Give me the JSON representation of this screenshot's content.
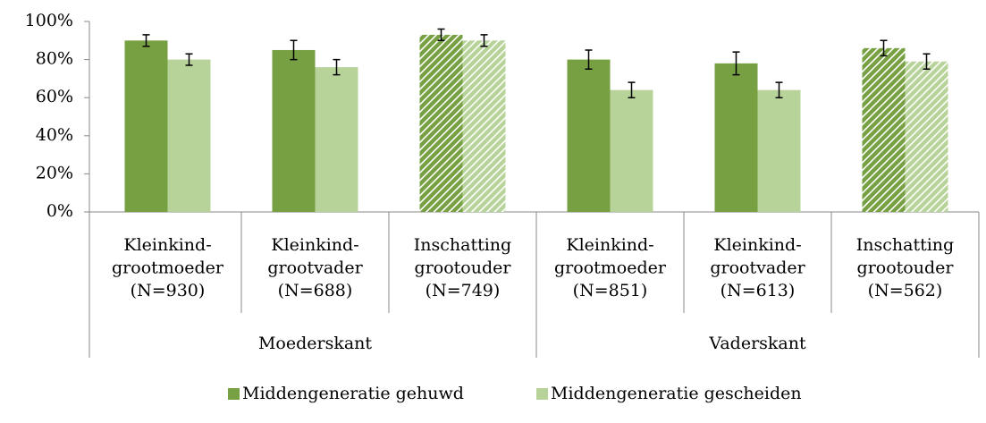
{
  "chart_data": {
    "type": "bar",
    "categories": [
      [
        "Kleinkind-",
        "grootmoeder",
        "(N=930)"
      ],
      [
        "Kleinkind-",
        "grootvader",
        "(N=688)"
      ],
      [
        "Inschatting",
        "grootouder",
        "(N=749)"
      ],
      [
        "Kleinkind-",
        "grootmoeder",
        "(N=851)"
      ],
      [
        "Kleinkind-",
        "grootvader",
        "(N=613)"
      ],
      [
        "Inschatting",
        "grootouder",
        "(N=562)"
      ]
    ],
    "groups": [
      {
        "label": "Moederskant",
        "span": 3
      },
      {
        "label": "Vaderskant",
        "span": 3
      }
    ],
    "hatched": [
      false,
      false,
      true,
      false,
      false,
      true
    ],
    "series": [
      {
        "name": "Middengeneratie gehuwd",
        "color": "#77a043",
        "values": [
          90,
          85,
          93,
          80,
          78,
          86
        ],
        "errors": [
          3,
          5,
          3,
          5,
          6,
          4
        ]
      },
      {
        "name": "Middengeneratie gescheiden",
        "color": "#b7d39a",
        "values": [
          80,
          76,
          90,
          64,
          64,
          79
        ],
        "errors": [
          3,
          4,
          3,
          4,
          4,
          4
        ]
      }
    ],
    "ylim": [
      0,
      100
    ],
    "yticks": [
      {
        "value": 0,
        "label": "0%"
      },
      {
        "value": 20,
        "label": "20%"
      },
      {
        "value": 40,
        "label": "40%"
      },
      {
        "value": 60,
        "label": "60%"
      },
      {
        "value": 80,
        "label": "80%"
      },
      {
        "value": 100,
        "label": "100%"
      }
    ],
    "grid": false,
    "legend": "bottom"
  }
}
